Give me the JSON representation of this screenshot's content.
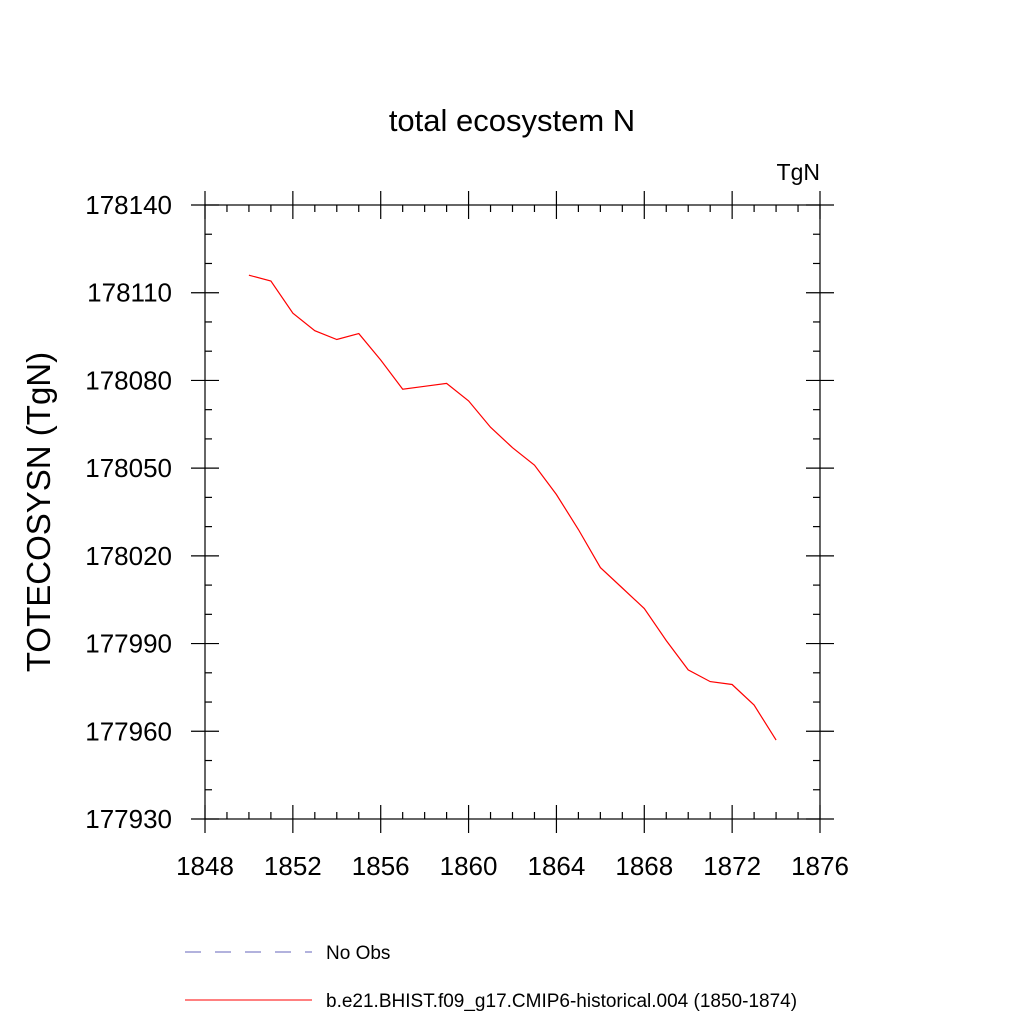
{
  "chart_data": {
    "type": "line",
    "title": "total ecosystem N",
    "units_label": "TgN",
    "xlabel": "",
    "ylabel": "TOTECOSYSN  (TgN)",
    "xlim": [
      1848,
      1876
    ],
    "ylim": [
      177930,
      178140
    ],
    "x_ticks": [
      1848,
      1852,
      1856,
      1860,
      1864,
      1868,
      1872,
      1876
    ],
    "y_ticks": [
      177930,
      177960,
      177990,
      178020,
      178050,
      178080,
      178110,
      178140
    ],
    "grid": false,
    "legend_position": "bottom",
    "series": [
      {
        "name": "b.e21.BHIST.f09_g17.CMIP6-historical.004 (1850-1874)",
        "color": "#ff0000",
        "style": "solid",
        "x": [
          1850,
          1851,
          1852,
          1853,
          1854,
          1855,
          1856,
          1857,
          1858,
          1859,
          1860,
          1861,
          1862,
          1863,
          1864,
          1865,
          1866,
          1867,
          1868,
          1869,
          1870,
          1871,
          1872,
          1873,
          1874
        ],
        "y": [
          178116,
          178114,
          178103,
          178097,
          178094,
          178096,
          178087,
          178077,
          178078,
          178079,
          178073,
          178064,
          178057,
          178051,
          178041,
          178029,
          178016,
          178009,
          178002,
          177991,
          177981,
          177977,
          177976,
          177969,
          177957
        ]
      }
    ],
    "legend": [
      {
        "label": "No Obs",
        "color": "#6666bb",
        "style": "dashed"
      },
      {
        "label": "b.e21.BHIST.f09_g17.CMIP6-historical.004 (1850-1874)",
        "color": "#ff0000",
        "style": "solid"
      }
    ]
  }
}
